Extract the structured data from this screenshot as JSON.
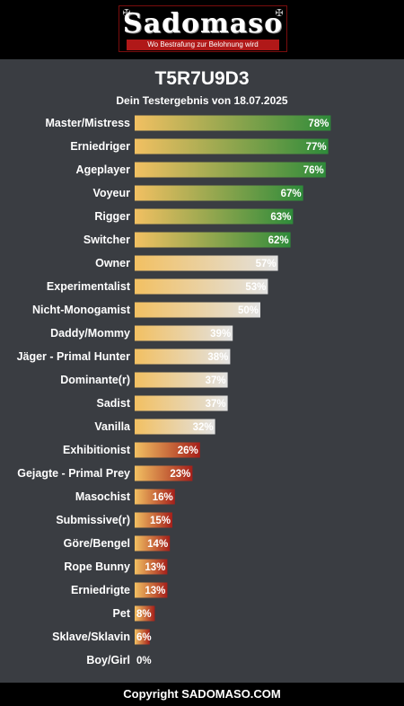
{
  "header": {
    "logo_text": "Sadomaso",
    "tagline": "Wo Bestrafung zur Belohnung wird"
  },
  "result": {
    "title": "T5R7U9D3",
    "subtitle": "Dein Testergebnis von 18.07.2025"
  },
  "colors": {
    "bar_start": "#f2c062",
    "high": "#2e8b3a",
    "mid": "#e2e2e2",
    "low": "#a51f1a"
  },
  "chart_data": {
    "type": "bar",
    "orientation": "horizontal",
    "categories": [
      "Master/Mistress",
      "Erniedriger",
      "Ageplayer",
      "Voyeur",
      "Rigger",
      "Switcher",
      "Owner",
      "Experimentalist",
      "Nicht-Monogamist",
      "Daddy/Mommy",
      "Jäger - Primal Hunter",
      "Dominante(r)",
      "Sadist",
      "Vanilla",
      "Exhibitionist",
      "Gejagte - Primal Prey",
      "Masochist",
      "Submissive(r)",
      "Göre/Bengel",
      "Rope Bunny",
      "Erniedrigte",
      "Pet",
      "Sklave/Sklavin",
      "Boy/Girl"
    ],
    "values": [
      78,
      77,
      76,
      67,
      63,
      62,
      57,
      53,
      50,
      39,
      38,
      37,
      37,
      32,
      26,
      23,
      16,
      15,
      14,
      13,
      13,
      8,
      6,
      0
    ],
    "value_labels": [
      "78%",
      "77%",
      "76%",
      "67%",
      "63%",
      "62%",
      "57%",
      "53%",
      "50%",
      "39%",
      "38%",
      "37%",
      "37%",
      "32%",
      "26%",
      "23%",
      "16%",
      "15%",
      "14%",
      "13%",
      "13%",
      "8%",
      "6%",
      "0%"
    ],
    "xlim": [
      0,
      100
    ]
  },
  "footer": {
    "copyright": "Copyright SADOMASO.COM"
  }
}
